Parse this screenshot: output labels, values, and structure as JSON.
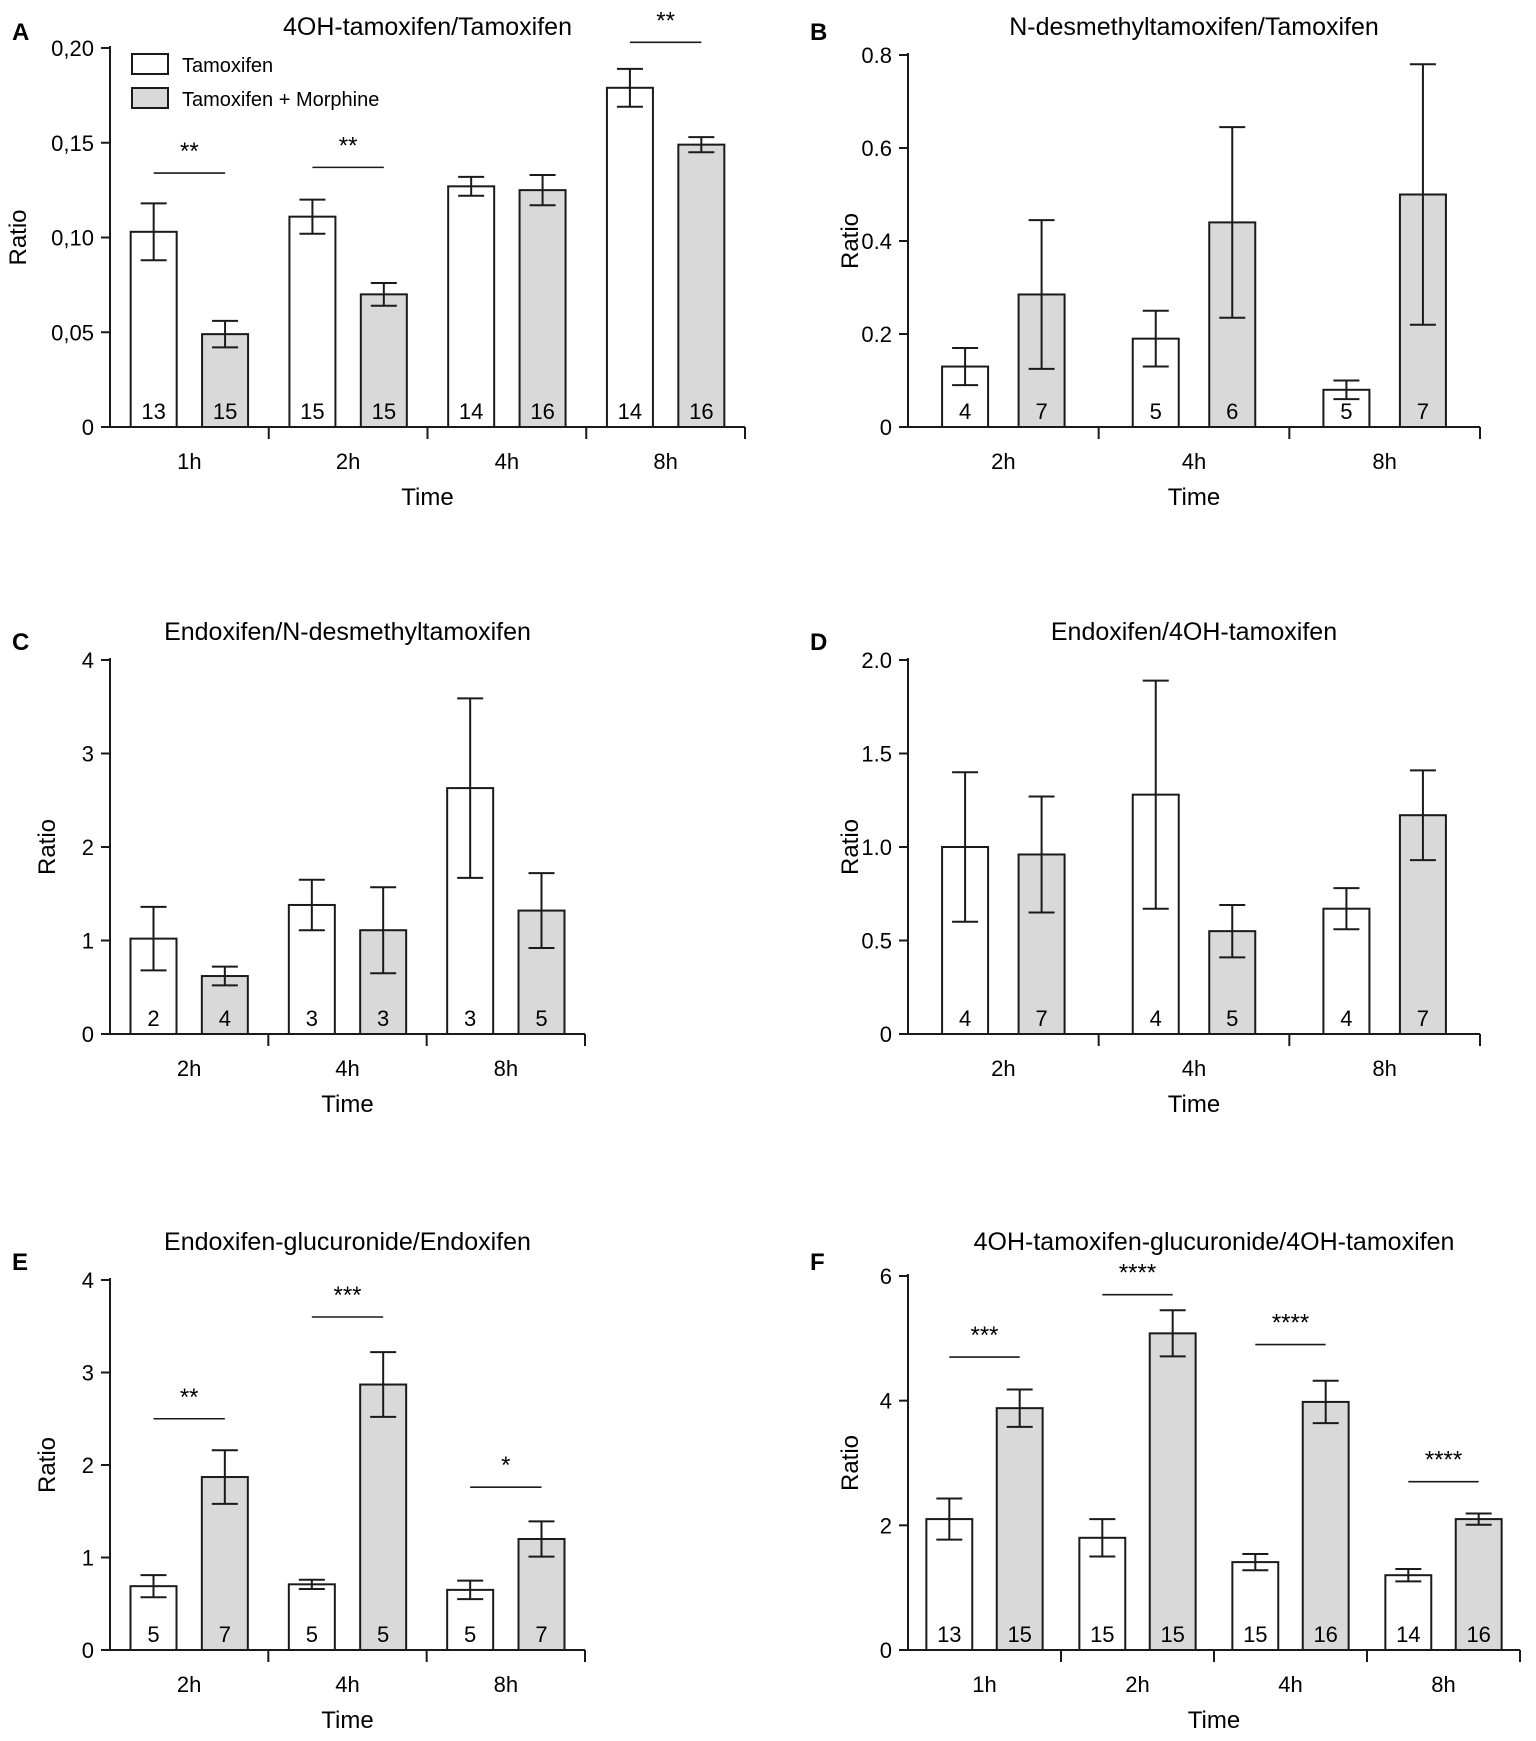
{
  "legend": {
    "items": [
      {
        "label": "Tamoxifen",
        "fill": "#ffffff"
      },
      {
        "label": "Tamoxifen + Morphine",
        "fill": "#d9d9d9"
      }
    ]
  },
  "colors": {
    "control": "#ffffff",
    "morphine": "#d9d9d9",
    "stroke": "#1a1a1a"
  },
  "chart_data": [
    {
      "panel": "A",
      "type": "bar",
      "title": "4OH-tamoxifen/Tamoxifen",
      "xlabel": "Time",
      "ylabel": "Ratio",
      "ylim": [
        0,
        0.2
      ],
      "yticks": [
        0,
        0.05,
        0.1,
        0.15,
        0.2
      ],
      "ytick_labels": [
        "0",
        "0,05",
        "0,10",
        "0,15",
        "0,20"
      ],
      "categories": [
        "1h",
        "2h",
        "4h",
        "8h"
      ],
      "series": [
        {
          "name": "Tamoxifen",
          "values": [
            0.103,
            0.111,
            0.127,
            0.179
          ],
          "errors": [
            0.015,
            0.009,
            0.005,
            0.01
          ],
          "n": [
            "13",
            "15",
            "14",
            "14"
          ]
        },
        {
          "name": "Tamoxifen + Morphine",
          "values": [
            0.049,
            0.07,
            0.125,
            0.149
          ],
          "errors": [
            0.007,
            0.006,
            0.008,
            0.004
          ],
          "n": [
            "15",
            "15",
            "16",
            "16"
          ]
        }
      ],
      "significance": [
        {
          "category": 0,
          "label": "**",
          "y": 0.134
        },
        {
          "category": 1,
          "label": "**",
          "y": 0.137
        },
        {
          "category": 3,
          "label": "**",
          "y": 0.203
        }
      ]
    },
    {
      "panel": "B",
      "type": "bar",
      "title": "N-desmethyltamoxifen/Tamoxifen",
      "xlabel": "Time",
      "ylabel": "Ratio",
      "ylim": [
        0,
        0.8
      ],
      "yticks": [
        0,
        0.2,
        0.4,
        0.6,
        0.8
      ],
      "ytick_labels": [
        "0",
        "0.2",
        "0.4",
        "0.6",
        "0.8"
      ],
      "categories": [
        "2h",
        "4h",
        "8h"
      ],
      "series": [
        {
          "name": "Tamoxifen",
          "values": [
            0.13,
            0.19,
            0.08
          ],
          "errors": [
            0.04,
            0.06,
            0.02
          ],
          "n": [
            "4",
            "5",
            "5"
          ]
        },
        {
          "name": "Tamoxifen + Morphine",
          "values": [
            0.285,
            0.44,
            0.5
          ],
          "errors": [
            0.16,
            0.205,
            0.28
          ],
          "n": [
            "7",
            "6",
            "7"
          ]
        }
      ],
      "significance": []
    },
    {
      "panel": "C",
      "type": "bar",
      "title": "Endoxifen/N-desmethyltamoxifen",
      "xlabel": "Time",
      "ylabel": "Ratio",
      "ylim": [
        0,
        4
      ],
      "yticks": [
        0,
        1,
        2,
        3,
        4
      ],
      "ytick_labels": [
        "0",
        "1",
        "2",
        "3",
        "4"
      ],
      "categories": [
        "2h",
        "4h",
        "8h"
      ],
      "series": [
        {
          "name": "Tamoxifen",
          "values": [
            1.02,
            1.38,
            2.63
          ],
          "errors": [
            0.34,
            0.27,
            0.96
          ],
          "n": [
            "2",
            "3",
            "3"
          ]
        },
        {
          "name": "Tamoxifen + Morphine",
          "values": [
            0.62,
            1.11,
            1.32
          ],
          "errors": [
            0.1,
            0.46,
            0.4
          ],
          "n": [
            "4",
            "3",
            "5"
          ]
        }
      ],
      "significance": []
    },
    {
      "panel": "D",
      "type": "bar",
      "title": "Endoxifen/4OH-tamoxifen",
      "xlabel": "Time",
      "ylabel": "Ratio",
      "ylim": [
        0,
        2
      ],
      "yticks": [
        0,
        0.5,
        1.0,
        1.5,
        2.0
      ],
      "ytick_labels": [
        "0",
        "0.5",
        "1.0",
        "1.5",
        "2.0"
      ],
      "categories": [
        "2h",
        "4h",
        "8h"
      ],
      "series": [
        {
          "name": "Tamoxifen",
          "values": [
            1.0,
            1.28,
            0.67
          ],
          "errors": [
            0.4,
            0.61,
            0.11
          ],
          "n": [
            "4",
            "4",
            "4"
          ]
        },
        {
          "name": "Tamoxifen + Morphine",
          "values": [
            0.96,
            0.55,
            1.17
          ],
          "errors": [
            0.31,
            0.14,
            0.24
          ],
          "n": [
            "7",
            "5",
            "7"
          ]
        }
      ],
      "significance": []
    },
    {
      "panel": "E",
      "type": "bar",
      "title": "Endoxifen-glucuronide/Endoxifen",
      "xlabel": "Time",
      "ylabel": "Ratio",
      "ylim": [
        0,
        4
      ],
      "yticks": [
        0,
        1,
        2,
        3,
        4
      ],
      "ytick_labels": [
        "0",
        "1",
        "2",
        "3",
        "4"
      ],
      "categories": [
        "2h",
        "4h",
        "8h"
      ],
      "series": [
        {
          "name": "Tamoxifen",
          "values": [
            0.69,
            0.71,
            0.65
          ],
          "errors": [
            0.12,
            0.05,
            0.1
          ],
          "n": [
            "5",
            "5",
            "5"
          ]
        },
        {
          "name": "Tamoxifen + Morphine",
          "values": [
            1.87,
            2.87,
            1.2
          ],
          "errors": [
            0.29,
            0.35,
            0.19
          ],
          "n": [
            "7",
            "5",
            "7"
          ]
        }
      ],
      "significance": [
        {
          "category": 0,
          "label": "**",
          "y": 2.5
        },
        {
          "category": 1,
          "label": "***",
          "y": 3.6
        },
        {
          "category": 2,
          "label": "*",
          "y": 1.76
        }
      ]
    },
    {
      "panel": "F",
      "type": "bar",
      "title": "4OH-tamoxifen-glucuronide/4OH-tamoxifen",
      "xlabel": "Time",
      "ylabel": "Ratio",
      "ylim": [
        0,
        6
      ],
      "yticks": [
        0,
        2,
        4,
        6
      ],
      "ytick_labels": [
        "0",
        "2",
        "4",
        "6"
      ],
      "categories": [
        "1h",
        "2h",
        "4h",
        "8h"
      ],
      "series": [
        {
          "name": "Tamoxifen",
          "values": [
            2.1,
            1.8,
            1.41,
            1.2
          ],
          "errors": [
            0.33,
            0.3,
            0.13,
            0.1
          ],
          "n": [
            "13",
            "15",
            "15",
            "14"
          ]
        },
        {
          "name": "Tamoxifen + Morphine",
          "values": [
            3.88,
            5.08,
            3.98,
            2.1
          ],
          "errors": [
            0.3,
            0.37,
            0.34,
            0.09
          ],
          "n": [
            "15",
            "15",
            "16",
            "16"
          ]
        }
      ],
      "significance": [
        {
          "category": 0,
          "label": "***",
          "y": 4.7
        },
        {
          "category": 1,
          "label": "****",
          "y": 5.7
        },
        {
          "category": 2,
          "label": "****",
          "y": 4.9
        },
        {
          "category": 3,
          "label": "****",
          "y": 2.7
        }
      ]
    }
  ]
}
